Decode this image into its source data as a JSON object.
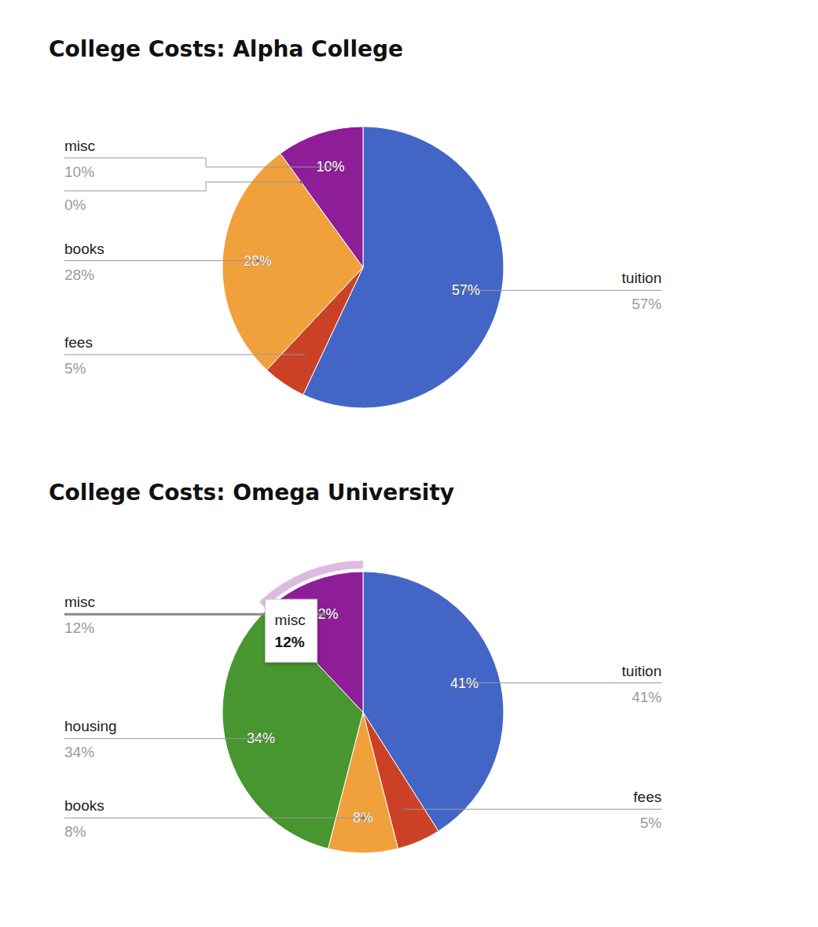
{
  "chart_data": [
    {
      "type": "pie",
      "title": "College Costs: Alpha College",
      "categories": [
        "tuition",
        "fees",
        "books",
        null,
        "misc"
      ],
      "values": [
        57,
        5,
        28,
        0,
        10
      ],
      "value_labels": [
        "57%",
        "5%",
        "28%",
        "0%",
        "10%"
      ],
      "colors": [
        "#4366c6",
        "#cc4126",
        "#f1a13b",
        "#47962f",
        "#8e1d98"
      ],
      "data_labels": true
    },
    {
      "type": "pie",
      "title": "College Costs: Omega University",
      "categories": [
        "tuition",
        "fees",
        "books",
        "housing",
        "misc"
      ],
      "values": [
        41,
        5,
        8,
        34,
        12
      ],
      "value_labels": [
        "41%",
        "5%",
        "8%",
        "34%",
        "12%"
      ],
      "colors": [
        "#4366c6",
        "#cc4126",
        "#f1a13b",
        "#47962f",
        "#8e1d98"
      ],
      "data_labels": true
    }
  ]
}
